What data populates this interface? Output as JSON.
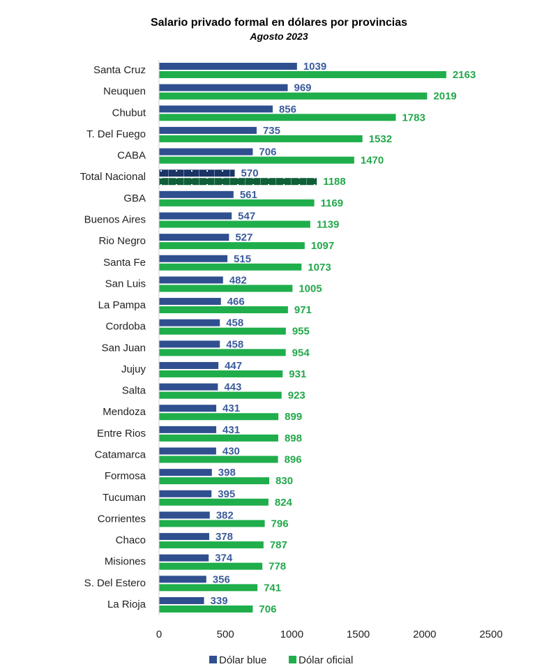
{
  "chart_data": {
    "type": "bar",
    "orientation": "horizontal",
    "title": "Salario privado formal en dólares por provincias",
    "subtitle": "Agosto 2023",
    "xlabel": "",
    "ylabel": "",
    "xlim": [
      0,
      2500
    ],
    "xticks": [
      "0",
      "500",
      "1000",
      "1500",
      "2000",
      "2500"
    ],
    "grid": false,
    "legend_position": "bottom",
    "categories": [
      "Santa Cruz",
      "Neuquen",
      "Chubut",
      "T. Del Fuego",
      "CABA",
      "Total Nacional",
      "GBA",
      "Buenos Aires",
      "Rio Negro",
      "Santa Fe",
      "San Luis",
      "La Pampa",
      "Cordoba",
      "San Juan",
      "Jujuy",
      "Salta",
      "Mendoza",
      "Entre Rios",
      "Catamarca",
      "Formosa",
      "Tucuman",
      "Corrientes",
      "Chaco",
      "Misiones",
      "S. Del Estero",
      "La Rioja"
    ],
    "highlight_category": "Total Nacional",
    "series": [
      {
        "name": "Dólar blue",
        "color": "#2f4f8f",
        "highlight_color": "#1b3466",
        "label_color": "#3b5b9b",
        "values": [
          1039,
          969,
          856,
          735,
          706,
          570,
          561,
          547,
          527,
          515,
          482,
          466,
          458,
          458,
          447,
          443,
          431,
          431,
          430,
          398,
          395,
          382,
          378,
          374,
          356,
          339
        ]
      },
      {
        "name": "Dólar oficial",
        "color": "#1fae4b",
        "highlight_color": "#0f5f38",
        "label_color": "#22a84a",
        "values": [
          2163,
          2019,
          1783,
          1532,
          1470,
          1188,
          1169,
          1139,
          1097,
          1073,
          1005,
          971,
          955,
          954,
          931,
          923,
          899,
          898,
          896,
          830,
          824,
          796,
          787,
          778,
          741,
          706
        ]
      }
    ]
  }
}
